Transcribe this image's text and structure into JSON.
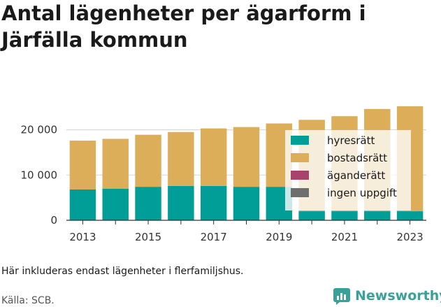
{
  "title": "Antal lägenheter per ägarform i Järfälla kommun",
  "note": "Här inkluderas endast lägenheter i flerfamiljshus.",
  "source": "Källa: SCB.",
  "brand": {
    "name": "Newsworthy",
    "icon": "bar-chart-logo-icon",
    "color": "#3aa198"
  },
  "chart_data": {
    "type": "bar",
    "stacked": true,
    "categories": [
      "2013",
      "2014",
      "2015",
      "2016",
      "2017",
      "2018",
      "2019",
      "2020",
      "2021",
      "2022",
      "2023"
    ],
    "x_tick_labels": [
      "2013",
      "2015",
      "2017",
      "2019",
      "2021",
      "2023"
    ],
    "y_tick_labels": [
      "0",
      "10 000",
      "20 000"
    ],
    "ylim": [
      0,
      25500
    ],
    "grid": true,
    "legend_position": "right",
    "series": [
      {
        "name": "hyresrätt",
        "color": "#009e96",
        "values": [
          6800,
          7000,
          7400,
          7600,
          7600,
          7400,
          7400,
          2000,
          2000,
          2000,
          2000
        ]
      },
      {
        "name": "bostadsrätt",
        "color": "#dcae5a",
        "values": [
          10800,
          11000,
          11500,
          11900,
          12700,
          13200,
          14000,
          20200,
          21000,
          22600,
          23200
        ]
      },
      {
        "name": "äganderätt",
        "color": "#a8436e",
        "values": [
          0,
          0,
          0,
          0,
          0,
          0,
          0,
          0,
          0,
          0,
          0
        ]
      },
      {
        "name": "ingen uppgift",
        "color": "#6e6e6e",
        "values": [
          0,
          0,
          0,
          0,
          0,
          0,
          0,
          0,
          0,
          0,
          0
        ]
      }
    ]
  }
}
